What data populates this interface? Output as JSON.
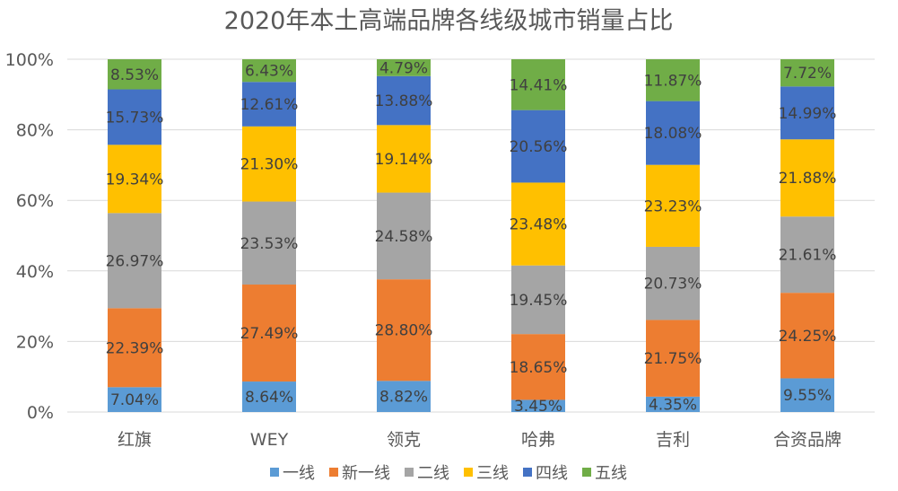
{
  "chart_data": {
    "type": "bar",
    "stacked": true,
    "title": "2020年本土高端品牌各线级城市销量占比",
    "categories": [
      "红旗",
      "WEY",
      "领克",
      "哈弗",
      "吉利",
      "合资品牌"
    ],
    "yticks": [
      "0%",
      "20%",
      "40%",
      "60%",
      "80%",
      "100%"
    ],
    "ylim": [
      0,
      100
    ],
    "grid": true,
    "legend_position": "bottom",
    "series": [
      {
        "name": "一线",
        "color": "#5B9BD5",
        "values": [
          7.04,
          8.64,
          8.82,
          3.45,
          4.35,
          9.55
        ],
        "labels": [
          "7.04%",
          "8.64%",
          "8.82%",
          "3.45%",
          "4.35%",
          "9.55%"
        ]
      },
      {
        "name": "新一线",
        "color": "#ED7D31",
        "values": [
          22.39,
          27.49,
          28.8,
          18.65,
          21.75,
          24.25
        ],
        "labels": [
          "22.39%",
          "27.49%",
          "28.80%",
          "18.65%",
          "21.75%",
          "24.25%"
        ]
      },
      {
        "name": "二线",
        "color": "#A5A5A5",
        "values": [
          26.97,
          23.53,
          24.58,
          19.45,
          20.73,
          21.61
        ],
        "labels": [
          "26.97%",
          "23.53%",
          "24.58%",
          "19.45%",
          "20.73%",
          "21.61%"
        ]
      },
      {
        "name": "三线",
        "color": "#FFC000",
        "values": [
          19.34,
          21.3,
          19.14,
          23.48,
          23.23,
          21.88
        ],
        "labels": [
          "19.34%",
          "21.30%",
          "19.14%",
          "23.48%",
          "23.23%",
          "21.88%"
        ]
      },
      {
        "name": "四线",
        "color": "#4472C4",
        "values": [
          15.73,
          12.61,
          13.88,
          20.56,
          18.08,
          14.99
        ],
        "labels": [
          "15.73%",
          "12.61%",
          "13.88%",
          "20.56%",
          "18.08%",
          "14.99%"
        ]
      },
      {
        "name": "五线",
        "color": "#70AD47",
        "values": [
          8.53,
          6.43,
          4.79,
          14.41,
          11.87,
          7.72
        ],
        "labels": [
          "8.53%",
          "6.43%",
          "4.79%",
          "14.41%",
          "11.87%",
          "7.72%"
        ]
      }
    ]
  }
}
